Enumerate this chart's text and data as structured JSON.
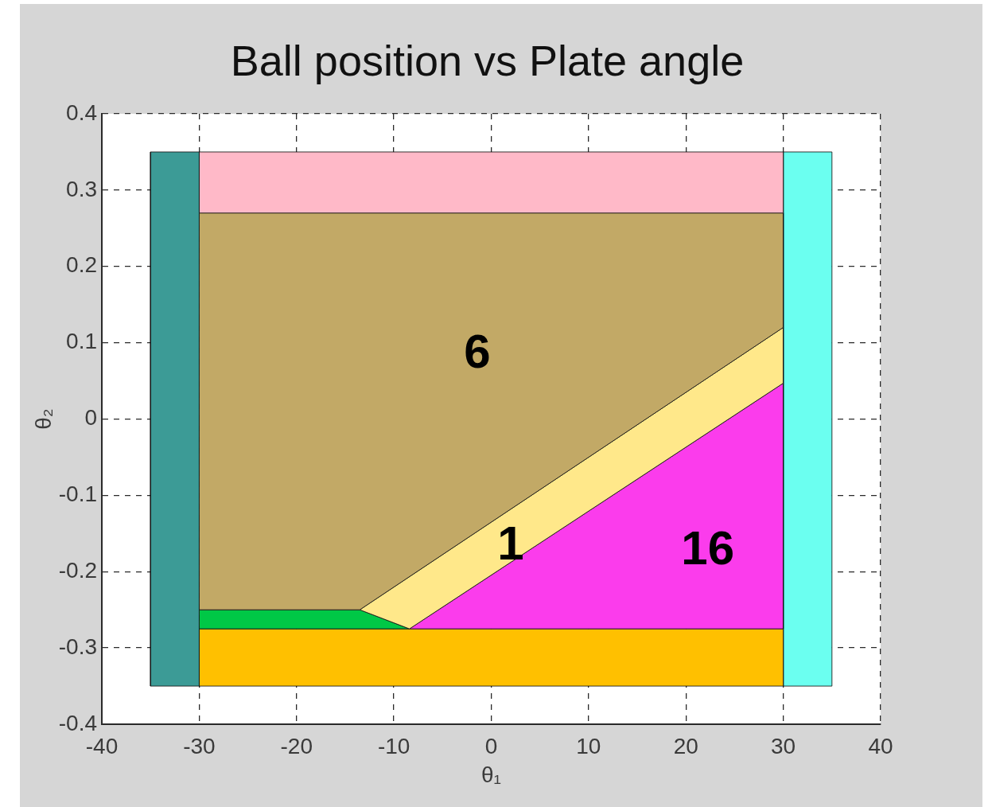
{
  "chart_data": {
    "type": "area",
    "title": "Ball position vs Plate angle",
    "xlabel": "θ₁",
    "ylabel": "θ₂",
    "xlim": [
      -40,
      40
    ],
    "xticks": [
      -40,
      -30,
      -20,
      -10,
      0,
      10,
      20,
      30,
      40
    ],
    "ylim": [
      -0.4,
      0.4
    ],
    "yticks": [
      -0.4,
      -0.3,
      -0.2,
      -0.1,
      0,
      0.1,
      0.2,
      0.3,
      0.4
    ],
    "grid": true,
    "legend": false,
    "series": [
      {
        "color": "#3c9b96",
        "x": [
          -35,
          -30,
          -30,
          -35
        ],
        "values": [
          -0.35,
          -0.35,
          0.35,
          0.35
        ]
      },
      {
        "color": "#ffb9c8",
        "x": [
          -30,
          30,
          30,
          -30
        ],
        "values": [
          0.27,
          0.27,
          0.35,
          0.35
        ]
      },
      {
        "color": "#c2a966",
        "x": [
          -30,
          30,
          30,
          -13.5,
          -30
        ],
        "values": [
          0.27,
          0.27,
          0.12,
          -0.25,
          -0.25
        ]
      },
      {
        "color": "#ffe88a",
        "x": [
          -13.5,
          30,
          30,
          -8.4
        ],
        "values": [
          -0.25,
          0.12,
          0.047,
          -0.275
        ]
      },
      {
        "color": "#fb3cec",
        "x": [
          -8.4,
          30,
          30
        ],
        "values": [
          -0.275,
          0.047,
          -0.275
        ]
      },
      {
        "color": "#00c846",
        "x": [
          -30,
          -13.5,
          -8.4,
          -30
        ],
        "values": [
          -0.25,
          -0.25,
          -0.275,
          -0.275
        ]
      },
      {
        "color": "#ffc000",
        "x": [
          -30,
          30,
          30,
          -30
        ],
        "values": [
          -0.35,
          -0.35,
          -0.275,
          -0.275
        ]
      },
      {
        "color": "#6bfff0",
        "x": [
          30,
          35,
          35,
          30
        ],
        "values": [
          -0.35,
          -0.35,
          0.35,
          0.35
        ]
      }
    ],
    "annotations": [
      "6",
      "1",
      "16"
    ]
  }
}
